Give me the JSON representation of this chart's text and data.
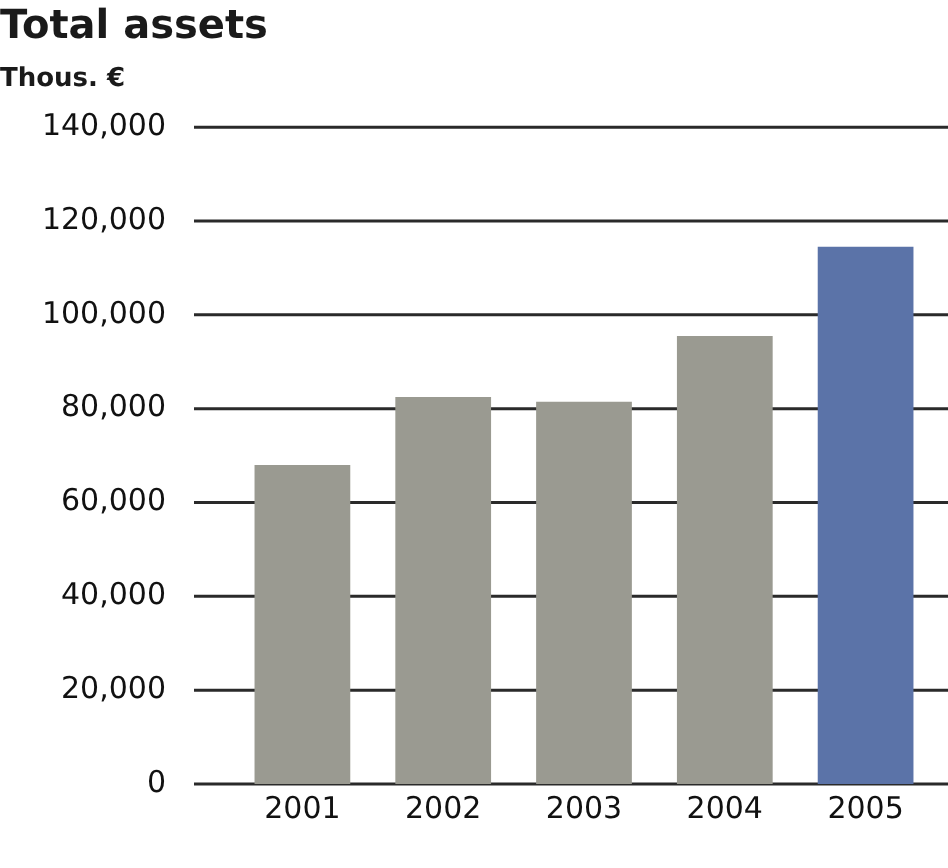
{
  "chart_data": {
    "type": "bar",
    "title": "Total assets",
    "subtitle": "Thous. €",
    "categories": [
      "2001",
      "2002",
      "2003",
      "2004",
      "2005"
    ],
    "values": [
      68000,
      82500,
      81500,
      95500,
      114500
    ],
    "colors": [
      "#9a9a91",
      "#9a9a91",
      "#9a9a91",
      "#9a9a91",
      "#5b73a8"
    ],
    "ylim": [
      0,
      140000
    ],
    "yticks": [
      0,
      {
        "value": 20000,
        "label": "20,000"
      },
      {
        "value": 40000,
        "label": "40,000"
      },
      {
        "value": 60000,
        "label": "60,000"
      },
      {
        "value": 80000,
        "label": "80,000"
      },
      {
        "value": 100000,
        "label": "100,000"
      },
      {
        "value": 120000,
        "label": "120,000"
      },
      {
        "value": 140000,
        "label": "140,000"
      }
    ],
    "grid": "y"
  }
}
